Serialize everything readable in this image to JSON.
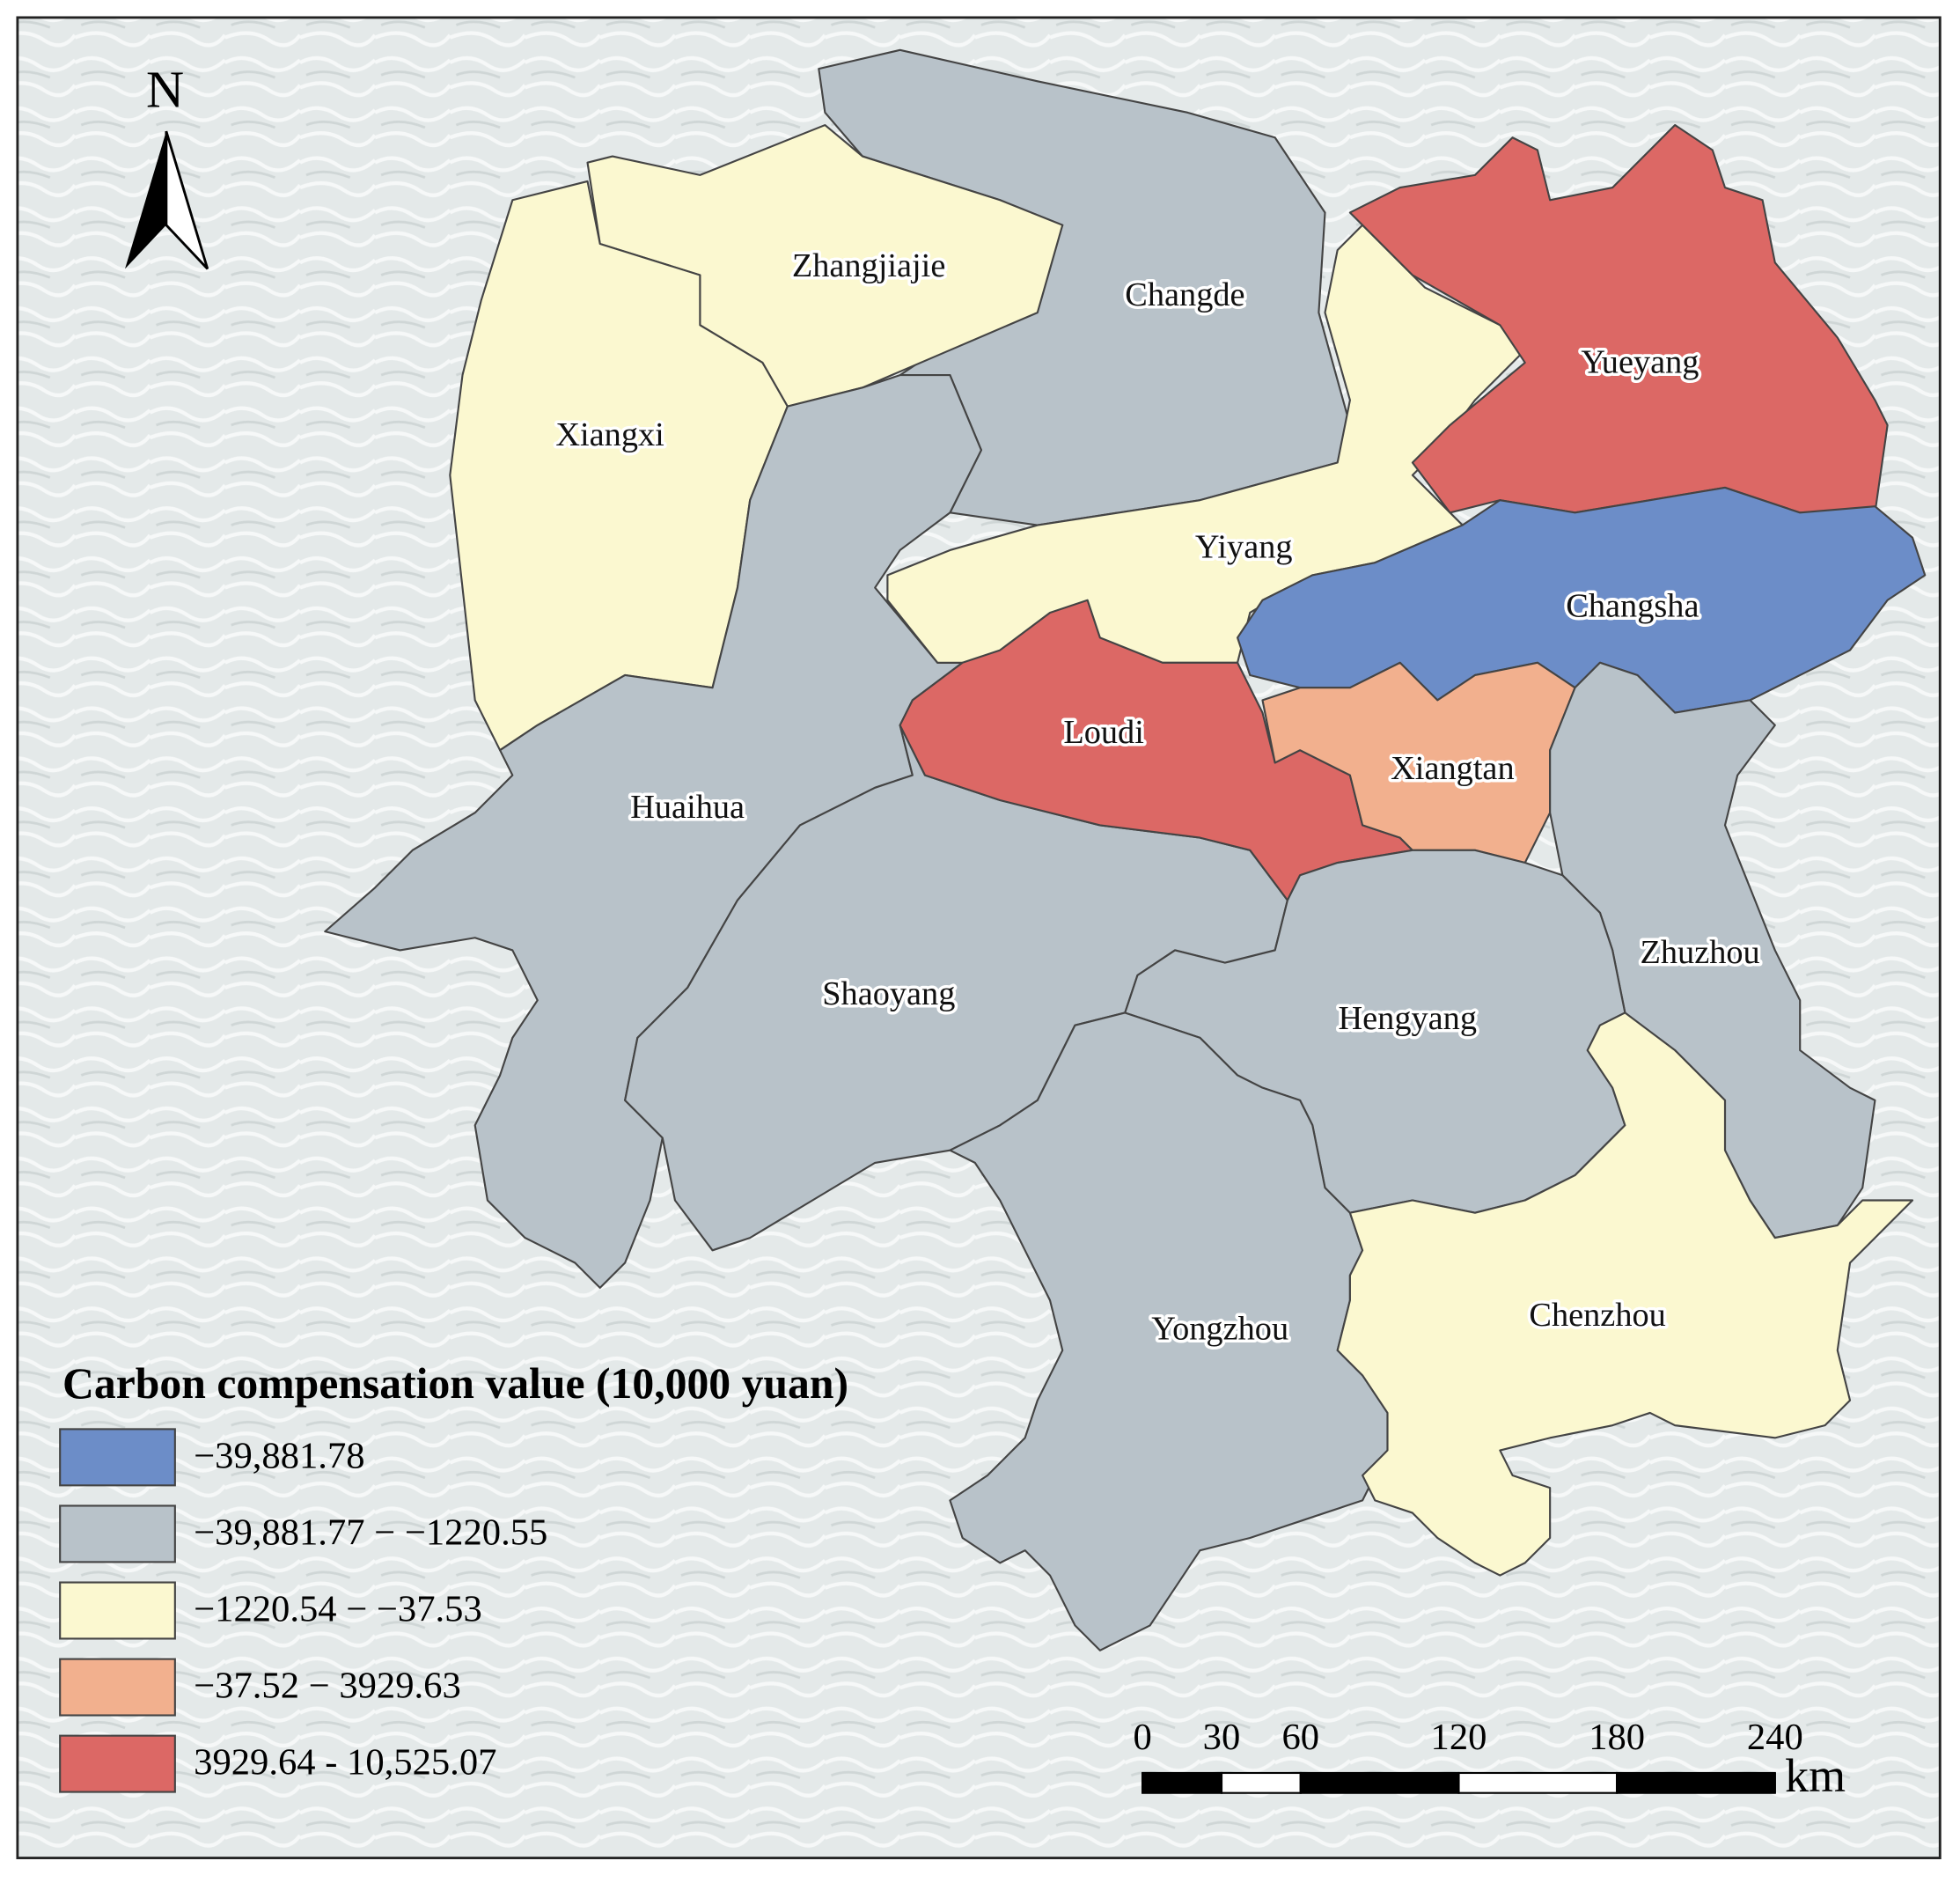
{
  "north": "N",
  "regions": [
    {
      "name": "Changde",
      "color": "#b8c2c9"
    },
    {
      "name": "Zhangjiajie",
      "color": "#fbf8d0"
    },
    {
      "name": "Xiangxi",
      "color": "#fbf8d0"
    },
    {
      "name": "Huaihua",
      "color": "#b8c2c9"
    },
    {
      "name": "Shaoyang",
      "color": "#b8c2c9"
    },
    {
      "name": "Yiyang",
      "color": "#fbf8d0"
    },
    {
      "name": "Yueyang",
      "color": "#dc6865"
    },
    {
      "name": "Changsha",
      "color": "#6c8dc8"
    },
    {
      "name": "Loudi",
      "color": "#dc6865"
    },
    {
      "name": "Xiangtan",
      "color": "#f2b08e"
    },
    {
      "name": "Zhuzhou",
      "color": "#b8c2c9"
    },
    {
      "name": "Hengyang",
      "color": "#b8c2c9"
    },
    {
      "name": "Yongzhou",
      "color": "#b8c2c9"
    },
    {
      "name": "Chenzhou",
      "color": "#fbf8d0"
    }
  ],
  "legend": {
    "title": "Carbon compensation value (10,000 yuan)",
    "items": [
      {
        "label": "−39,881.78",
        "color": "#6c8dc8"
      },
      {
        "label": "−39,881.77 − −1220.55",
        "color": "#b8c2c9"
      },
      {
        "label": "−1220.54 − −37.53",
        "color": "#fbf8d0"
      },
      {
        "label": "−37.52 − 3929.63",
        "color": "#f2b08e"
      },
      {
        "label": "3929.64 - 10,525.07",
        "color": "#dc6865"
      }
    ]
  },
  "scale_bar": {
    "ticks": [
      0,
      30,
      60,
      120,
      180,
      240
    ],
    "unit": "km"
  }
}
